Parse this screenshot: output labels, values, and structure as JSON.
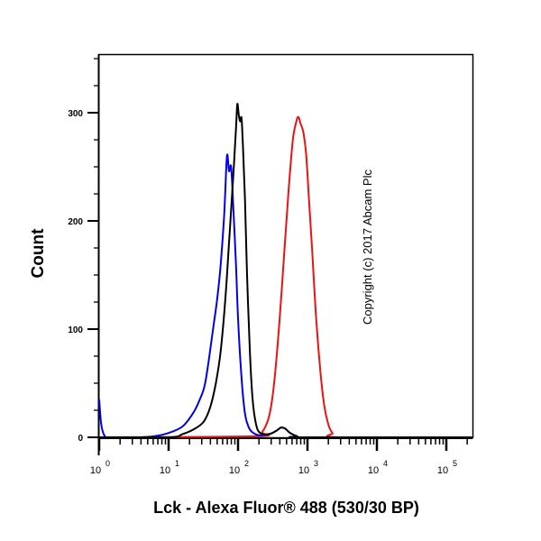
{
  "chart_data": {
    "type": "line",
    "subtype": "flow-cytometry-histogram",
    "title": "",
    "xlabel": "Lck - Alexa Fluor® 488 (530/30 BP)",
    "ylabel": "Count",
    "xscale": "log",
    "xlim": [
      1,
      200000
    ],
    "ylim": [
      0,
      350
    ],
    "x_ticks": [
      "10^0",
      "10^1",
      "10^2",
      "10^3",
      "10^4",
      "10^5"
    ],
    "x_tick_values": [
      1,
      10,
      100,
      1000,
      10000,
      100000
    ],
    "y_ticks": [
      0,
      100,
      200,
      300
    ],
    "grid": false,
    "legend": null,
    "annotation": "Copyright (c) 2017 Abcam Plc",
    "series": [
      {
        "name": "blue",
        "color": "#0000ee",
        "log10_x": [
          0.0,
          0.03,
          0.08,
          0.15,
          0.6,
          0.8,
          1.0,
          1.2,
          1.35,
          1.45,
          1.52,
          1.58,
          1.64,
          1.7,
          1.75,
          1.8,
          1.84,
          1.87,
          1.9,
          1.93,
          1.97,
          2.0,
          2.05,
          2.1,
          2.15,
          2.2,
          2.3,
          2.45,
          2.55,
          2.62,
          2.68,
          2.75,
          2.85,
          2.95,
          5.4
        ],
        "counts": [
          35,
          12,
          1,
          0,
          0,
          1,
          4,
          10,
          22,
          35,
          48,
          72,
          100,
          128,
          160,
          205,
          260,
          246,
          250,
          215,
          160,
          110,
          55,
          22,
          10,
          5,
          2,
          3,
          6,
          9,
          8,
          4,
          1,
          0,
          0
        ]
      },
      {
        "name": "black",
        "color": "#000000",
        "log10_x": [
          0.0,
          1.0,
          1.2,
          1.35,
          1.5,
          1.6,
          1.68,
          1.75,
          1.82,
          1.88,
          1.93,
          1.97,
          1.99,
          2.01,
          2.03,
          2.05,
          2.07,
          2.1,
          2.13,
          2.17,
          2.21,
          2.26,
          2.32,
          2.45,
          2.55,
          2.62,
          2.68,
          2.75,
          2.85,
          2.95,
          5.4
        ],
        "counts": [
          0,
          0,
          3,
          7,
          14,
          28,
          50,
          80,
          130,
          190,
          240,
          285,
          308,
          298,
          292,
          295,
          270,
          220,
          150,
          80,
          35,
          12,
          4,
          3,
          6,
          9,
          8,
          4,
          1,
          0,
          0
        ]
      },
      {
        "name": "red",
        "color": "#ee1111",
        "log10_x": [
          0.0,
          2.25,
          2.35,
          2.45,
          2.52,
          2.6,
          2.67,
          2.73,
          2.79,
          2.84,
          2.87,
          2.9,
          2.94,
          2.98,
          3.02,
          3.07,
          3.12,
          3.18,
          3.24,
          3.3,
          3.36,
          3.45,
          5.4
        ],
        "counts": [
          0,
          1,
          5,
          20,
          50,
          110,
          175,
          230,
          275,
          292,
          296,
          290,
          282,
          262,
          222,
          170,
          115,
          65,
          30,
          12,
          4,
          0,
          0
        ]
      }
    ]
  },
  "labels": {
    "ylabel": "Count",
    "xlabel": "Lck - Alexa Fluor® 488 (530/30 BP)",
    "copyright": "Copyright (c) 2017 Abcam Plc"
  },
  "axis": {
    "y_tick_labels": [
      "0",
      "100",
      "200",
      "300"
    ],
    "x_tick_bases": [
      "10",
      "10",
      "10",
      "10",
      "10",
      "10"
    ],
    "x_tick_exponents": [
      "0",
      "1",
      "2",
      "3",
      "4",
      "5"
    ]
  }
}
